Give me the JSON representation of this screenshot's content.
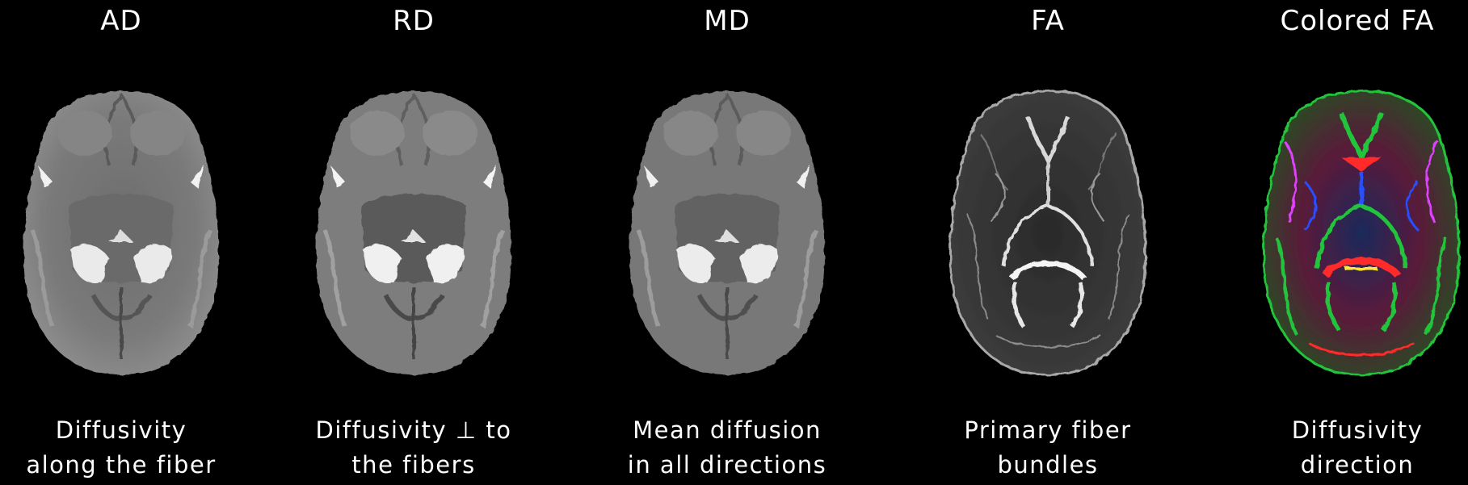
{
  "panels": [
    {
      "title": "AD",
      "caption_line1": "Diffusivity",
      "caption_line2": "along the fiber"
    },
    {
      "title": "RD",
      "caption_line1": "Diffusivity ⊥ to",
      "caption_line2": "the fibers"
    },
    {
      "title": "MD",
      "caption_line1": "Mean diffusion",
      "caption_line2": "in all directions"
    },
    {
      "title": "FA",
      "caption_line1": "Primary fiber",
      "caption_line2": "bundles"
    },
    {
      "title": "Colored FA",
      "caption_line1": "Diffusivity",
      "caption_line2": "direction"
    }
  ],
  "colors": {
    "background": "#000000",
    "text": "#ffffff",
    "fa_red": "#ff2a2a",
    "fa_green": "#22c43a",
    "fa_blue": "#2850ff",
    "fa_magenta": "#e040ff",
    "fa_yellow": "#ffe640"
  }
}
